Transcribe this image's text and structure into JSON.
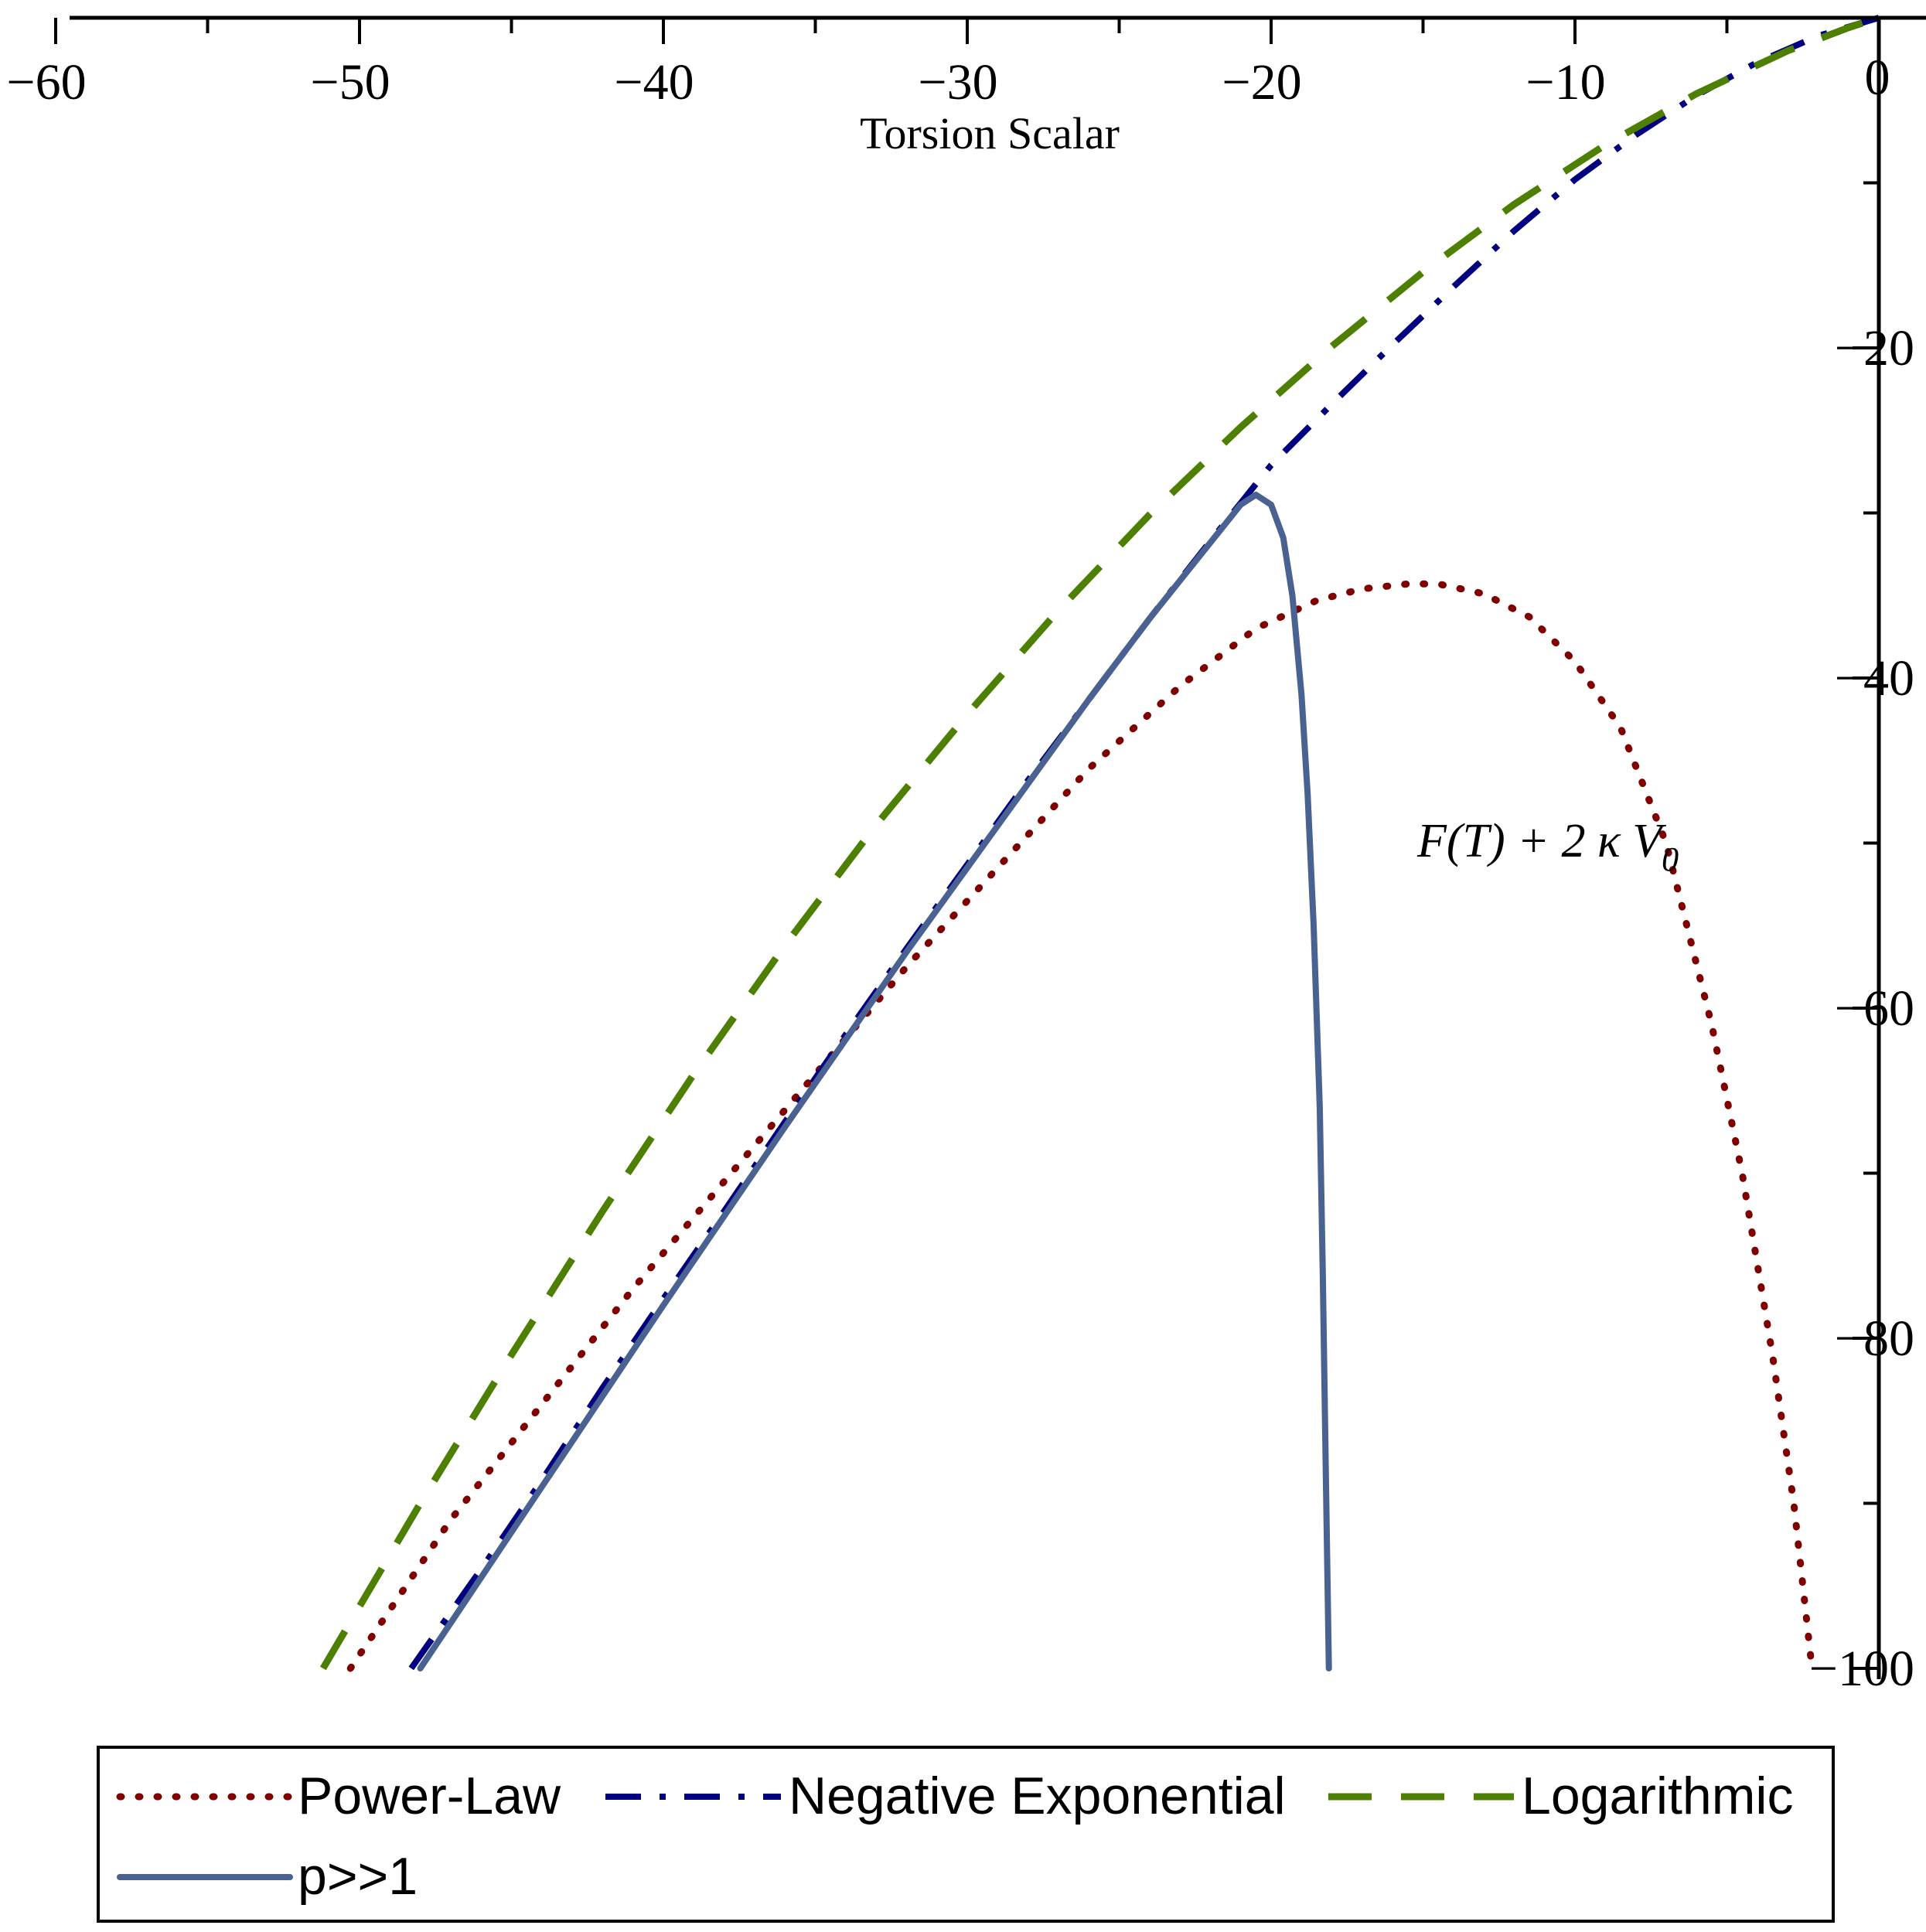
{
  "chart_data": {
    "type": "line",
    "title": "",
    "xlabel": "Torsion Scalar",
    "ylabel": "F(T) + 2 κ V_0",
    "ylabel_main": "F(T) + 2 κ V",
    "ylabel_sub": "0",
    "xlim": [
      -62,
      1.5
    ],
    "ylim": [
      -101,
      0.3
    ],
    "x_ticks": [
      -60,
      -50,
      -40,
      -30,
      -20,
      -10,
      0
    ],
    "x_tick_labels": [
      "−60",
      "−50",
      "−40",
      "−30",
      "−20",
      "−10",
      "0"
    ],
    "y_ticks": [
      -20,
      -40,
      -60,
      -80,
      -100
    ],
    "y_tick_labels": [
      "−20",
      "−40",
      "−60",
      "−80",
      "−100"
    ],
    "grid": false,
    "legend_position": "bottom",
    "series": [
      {
        "name": "Power-Law",
        "color": "#800000",
        "style": "dotted",
        "x": [
          -50.3,
          -47,
          -44,
          -41,
          -38,
          -35,
          -32,
          -29,
          -26,
          -23,
          -20.5,
          -18.5,
          -17,
          -15.5,
          -14.5,
          -13,
          -11.5,
          -10,
          -8.5,
          -7,
          -5.5,
          -4.5,
          -3.5,
          -2.8,
          -2.2
        ],
        "y": [
          -100,
          -91,
          -84,
          -77,
          -70.5,
          -64,
          -57.5,
          -51.5,
          -45.5,
          -40.5,
          -37,
          -35.3,
          -34.6,
          -34.3,
          -34.3,
          -34.9,
          -36.3,
          -39,
          -43,
          -50,
          -61,
          -70,
          -81,
          -90,
          -100
        ]
      },
      {
        "name": "Negative Exponential",
        "color": "#000080",
        "style": "dashdot",
        "x": [
          -48.3,
          -46,
          -44,
          -42,
          -40,
          -38,
          -36,
          -34,
          -32,
          -30,
          -28,
          -26,
          -24,
          -22,
          -20,
          -18,
          -16,
          -14,
          -12,
          -10,
          -8,
          -6,
          -4,
          -2,
          0
        ],
        "y": [
          -100,
          -94,
          -88.6,
          -83,
          -77.6,
          -72.3,
          -66.9,
          -61.6,
          -56.4,
          -51.3,
          -46.2,
          -41.3,
          -36.4,
          -31.7,
          -27.1,
          -23.4,
          -19.8,
          -16.3,
          -12.9,
          -9.8,
          -7.1,
          -4.7,
          -2.7,
          -1.1,
          0
        ]
      },
      {
        "name": "Logarithmic",
        "color": "#4d7f00",
        "style": "dashed",
        "x": [
          -51.2,
          -48,
          -45,
          -42,
          -39,
          -36,
          -33,
          -30,
          -27,
          -24,
          -21,
          -18,
          -15,
          -12,
          -9,
          -6,
          -3,
          -1,
          0
        ],
        "y": [
          -100,
          -90,
          -81,
          -72.3,
          -64,
          -56.2,
          -48.9,
          -42.2,
          -35.9,
          -30.1,
          -24.8,
          -19.9,
          -15.4,
          -11.3,
          -7.7,
          -4.6,
          -2.0,
          -0.6,
          0
        ]
      },
      {
        "name": "p>>1",
        "color": "#4a6291",
        "style": "solid",
        "x": [
          -48,
          -46,
          -44,
          -42,
          -40,
          -38,
          -36,
          -34,
          -32,
          -30,
          -28,
          -26,
          -24,
          -22,
          -21,
          -20.5,
          -20,
          -19.6,
          -19.3,
          -19,
          -18.8,
          -18.6,
          -18.4,
          -18.3,
          -18.2,
          -18.1
        ],
        "y": [
          -100,
          -94.5,
          -89,
          -83.5,
          -78,
          -72.6,
          -67.2,
          -61.9,
          -56.6,
          -51.5,
          -46.4,
          -41.3,
          -36.4,
          -31.8,
          -29.5,
          -28.9,
          -29.5,
          -31.5,
          -35,
          -41,
          -47,
          -55,
          -66,
          -76,
          -88,
          -100
        ]
      }
    ]
  }
}
